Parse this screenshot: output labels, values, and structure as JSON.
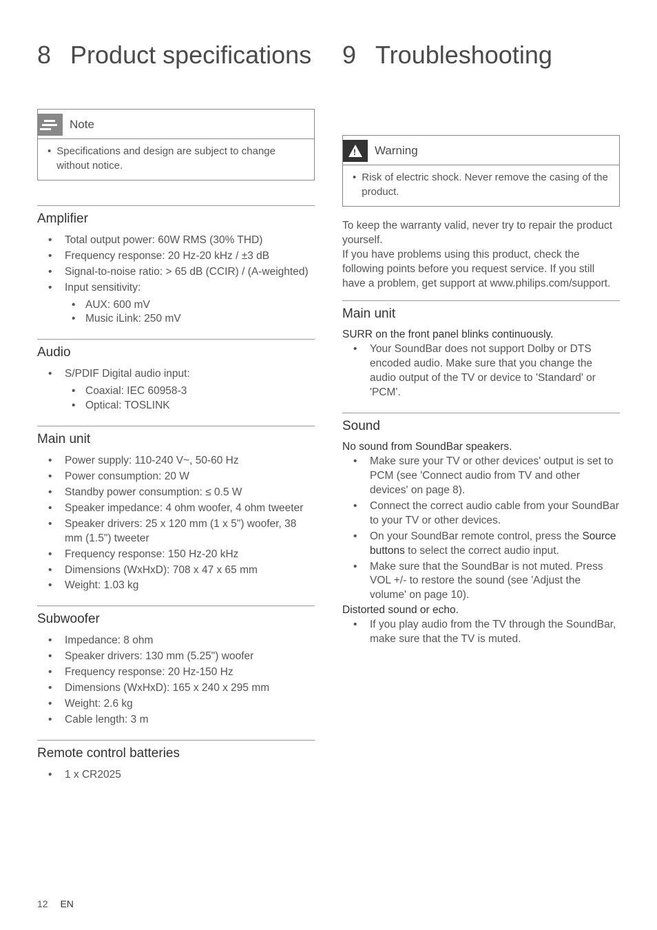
{
  "page": {
    "number": "12",
    "lang": "EN"
  },
  "left": {
    "chapter_num": "8",
    "chapter_title": "Product specifications",
    "note": {
      "title": "Note",
      "body": "Specifications and design are subject to change without notice."
    },
    "sections": [
      {
        "title": "Amplifier",
        "items": [
          {
            "text": "Total output power: 60W RMS (30% THD)"
          },
          {
            "text": "Frequency response: 20 Hz-20 kHz / ±3 dB"
          },
          {
            "text": "Signal-to-noise ratio: > 65 dB (CCIR) / (A-weighted)"
          },
          {
            "text": "Input sensitivity:",
            "sub": [
              "AUX: 600 mV",
              "Music iLink: 250 mV"
            ]
          }
        ]
      },
      {
        "title": "Audio",
        "items": [
          {
            "text": "S/PDIF Digital audio input:",
            "sub": [
              "Coaxial: IEC 60958-3",
              "Optical: TOSLINK"
            ]
          }
        ]
      },
      {
        "title": "Main unit",
        "items": [
          {
            "text": "Power supply: 110-240 V~, 50-60 Hz"
          },
          {
            "text": "Power consumption: 20 W"
          },
          {
            "text": "Standby power consumption: ≤ 0.5 W"
          },
          {
            "text": "Speaker impedance: 4 ohm woofer, 4 ohm tweeter"
          },
          {
            "text": "Speaker drivers: 25 x 120 mm (1 x 5\") woofer, 38 mm (1.5\") tweeter"
          },
          {
            "text": "Frequency response: 150 Hz-20 kHz"
          },
          {
            "text": "Dimensions (WxHxD): 708 x 47 x 65 mm"
          },
          {
            "text": "Weight: 1.03 kg"
          }
        ]
      },
      {
        "title": "Subwoofer",
        "items": [
          {
            "text": "Impedance: 8 ohm"
          },
          {
            "text": "Speaker drivers: 130 mm (5.25\") woofer"
          },
          {
            "text": "Frequency response: 20 Hz-150 Hz"
          },
          {
            "text": "Dimensions (WxHxD): 165 x 240 x 295 mm"
          },
          {
            "text": "Weight: 2.6 kg"
          },
          {
            "text": "Cable length: 3 m"
          }
        ]
      },
      {
        "title": "Remote control batteries",
        "items": [
          {
            "text": "1 x CR2025"
          }
        ]
      }
    ]
  },
  "right": {
    "chapter_num": "9",
    "chapter_title": "Troubleshooting",
    "warning": {
      "title": "Warning",
      "body": "Risk of electric shock. Never remove the casing of the product."
    },
    "intro": "To keep the warranty valid, never try to repair the product yourself.\nIf you have problems using this product, check the following points before you request service. If you still have a problem, get support at www.philips.com/support.",
    "sections": [
      {
        "title": "Main unit",
        "groups": [
          {
            "heading": "SURR on the front panel blinks continuously.",
            "items": [
              "Your SoundBar does not support Dolby or DTS encoded audio. Make sure that you change the audio output of the TV or device to 'Standard' or 'PCM'."
            ]
          }
        ]
      },
      {
        "title": "Sound",
        "groups": [
          {
            "heading": "No sound from SoundBar speakers.",
            "items": [
              "Make sure your TV or other devices' output is set to PCM (see 'Connect audio from TV and other devices' on page 8).",
              "Connect the correct audio cable from your SoundBar to your TV or other devices.",
              "On your SoundBar remote control, press the |Source buttons| to select the correct audio input.",
              "Make sure that the SoundBar is not muted. Press VOL +/- to restore the sound (see 'Adjust the volume' on page 10)."
            ]
          },
          {
            "heading": "Distorted sound or echo.",
            "items": [
              "If you play audio from the TV through the SoundBar, make sure that the TV is muted."
            ]
          }
        ]
      }
    ]
  }
}
